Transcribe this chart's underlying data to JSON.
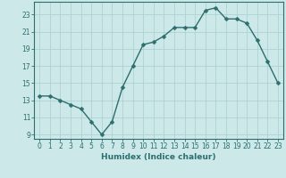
{
  "x": [
    0,
    1,
    2,
    3,
    4,
    5,
    6,
    7,
    8,
    9,
    10,
    11,
    12,
    13,
    14,
    15,
    16,
    17,
    18,
    19,
    20,
    21,
    22,
    23
  ],
  "y": [
    13.5,
    13.5,
    13.0,
    12.5,
    12.0,
    10.5,
    9.0,
    10.5,
    14.5,
    17.0,
    19.5,
    19.8,
    20.5,
    21.5,
    21.5,
    21.5,
    23.5,
    23.8,
    22.5,
    22.5,
    22.0,
    20.0,
    17.5,
    15.0
  ],
  "xlabel": "Humidex (Indice chaleur)",
  "xlim_min": -0.5,
  "xlim_max": 23.5,
  "ylim_min": 8.5,
  "ylim_max": 24.5,
  "yticks": [
    9,
    11,
    13,
    15,
    17,
    19,
    21,
    23
  ],
  "xticks": [
    0,
    1,
    2,
    3,
    4,
    5,
    6,
    7,
    8,
    9,
    10,
    11,
    12,
    13,
    14,
    15,
    16,
    17,
    18,
    19,
    20,
    21,
    22,
    23
  ],
  "line_color": "#2d6e6e",
  "marker_color": "#2d6e6e",
  "bg_color": "#cce8e8",
  "grid_color": "#aacece",
  "axis_color": "#2d6e6e",
  "tick_color": "#2d6e6e",
  "label_color": "#2d6e6e",
  "marker_size": 2.5,
  "linewidth": 1.0,
  "tick_fontsize": 5.5,
  "xlabel_fontsize": 6.5
}
